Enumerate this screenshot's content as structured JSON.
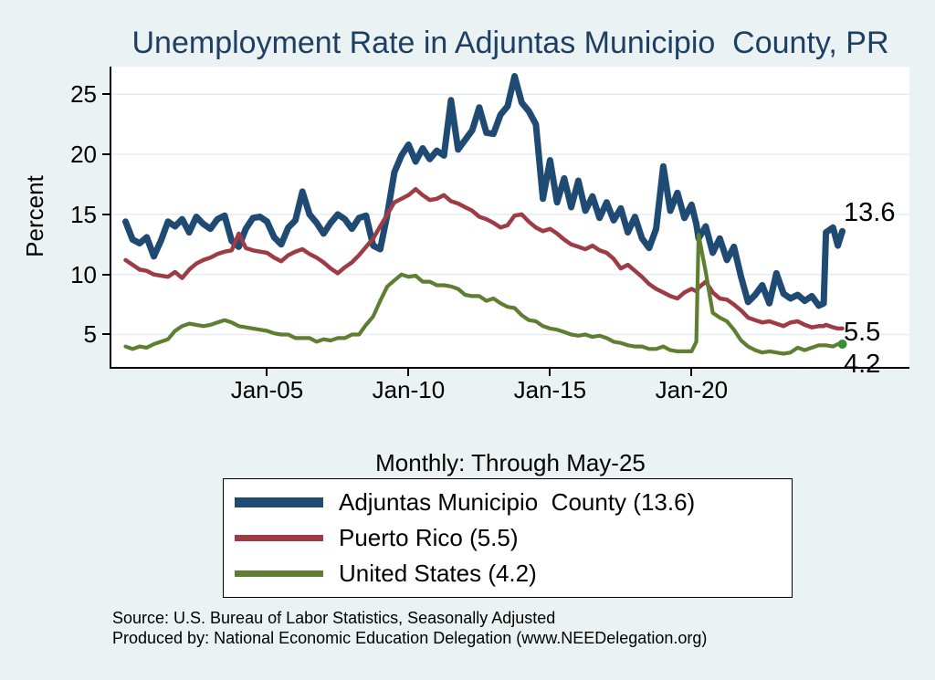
{
  "chart_data": {
    "type": "line",
    "title": "Unemployment Rate in Adjuntas Municipio  County, PR",
    "xaxis_note": "Monthly: Through May-25",
    "ylabel": "Percent",
    "grid": true,
    "legend_position": "below",
    "x_unit": "decimal_year",
    "xlim": [
      1999.5,
      2027.7
    ],
    "ylim": [
      2.3,
      27.3
    ],
    "yticks": [
      5,
      10,
      15,
      20,
      25
    ],
    "xticks": [
      {
        "value": 2005,
        "label": "Jan-05"
      },
      {
        "value": 2010,
        "label": "Jan-10"
      },
      {
        "value": 2015,
        "label": "Jan-15"
      },
      {
        "value": 2020,
        "label": "Jan-20"
      }
    ],
    "x": [
      2000.0,
      2000.25,
      2000.5,
      2000.75,
      2001.0,
      2001.25,
      2001.5,
      2001.75,
      2002.0,
      2002.25,
      2002.5,
      2002.75,
      2003.0,
      2003.25,
      2003.5,
      2003.75,
      2004.0,
      2004.25,
      2004.5,
      2004.75,
      2005.0,
      2005.25,
      2005.5,
      2005.75,
      2006.0,
      2006.25,
      2006.5,
      2006.75,
      2007.0,
      2007.25,
      2007.5,
      2007.75,
      2008.0,
      2008.25,
      2008.5,
      2008.75,
      2009.0,
      2009.25,
      2009.5,
      2009.75,
      2010.0,
      2010.25,
      2010.5,
      2010.75,
      2011.0,
      2011.25,
      2011.5,
      2011.75,
      2012.0,
      2012.25,
      2012.5,
      2012.75,
      2013.0,
      2013.25,
      2013.5,
      2013.75,
      2014.0,
      2014.25,
      2014.5,
      2014.75,
      2015.0,
      2015.25,
      2015.5,
      2015.75,
      2016.0,
      2016.25,
      2016.5,
      2016.75,
      2017.0,
      2017.25,
      2017.5,
      2017.75,
      2018.0,
      2018.25,
      2018.5,
      2018.75,
      2019.0,
      2019.25,
      2019.5,
      2019.75,
      2020.0,
      2020.17,
      2020.25,
      2020.5,
      2020.75,
      2021.0,
      2021.25,
      2021.5,
      2021.75,
      2022.0,
      2022.25,
      2022.5,
      2022.75,
      2023.0,
      2023.25,
      2023.5,
      2023.75,
      2024.0,
      2024.25,
      2024.5,
      2024.67,
      2024.75,
      2025.0,
      2025.17,
      2025.33
    ],
    "series": [
      {
        "name": "Adjuntas Municipio  County",
        "legend_label": "Adjuntas Municipio  County (13.6)",
        "color": "#1e4a73",
        "line_width": 7,
        "end_label": "13.6",
        "latest_value": 13.6,
        "values": [
          14.4,
          12.9,
          12.6,
          13.1,
          11.5,
          12.8,
          14.4,
          14.0,
          14.6,
          13.5,
          14.8,
          14.2,
          13.8,
          14.6,
          14.9,
          12.8,
          12.3,
          13.8,
          14.7,
          14.8,
          14.4,
          13.1,
          12.5,
          13.9,
          14.5,
          16.9,
          15.0,
          14.3,
          13.4,
          14.3,
          15.0,
          14.6,
          13.8,
          14.7,
          14.9,
          12.4,
          12.1,
          15.0,
          18.5,
          19.9,
          20.8,
          19.4,
          20.5,
          19.6,
          20.3,
          19.9,
          24.5,
          20.4,
          21.2,
          22.0,
          23.9,
          21.8,
          21.7,
          23.3,
          24.0,
          26.5,
          24.3,
          23.6,
          22.5,
          16.3,
          19.5,
          16.0,
          18.0,
          15.6,
          17.8,
          15.3,
          16.5,
          14.7,
          16.0,
          14.5,
          15.5,
          13.5,
          14.8,
          13.0,
          12.2,
          13.8,
          19.0,
          15.3,
          16.8,
          14.7,
          15.8,
          14.2,
          13.0,
          14.0,
          11.8,
          13.0,
          11.2,
          12.3,
          9.8,
          7.7,
          8.3,
          9.1,
          7.6,
          10.1,
          8.4,
          8.0,
          8.3,
          7.8,
          8.2,
          7.4,
          7.6,
          13.5,
          13.9,
          12.4,
          13.6
        ]
      },
      {
        "name": "Puerto Rico",
        "legend_label": "Puerto Rico (5.5)",
        "color": "#9e3c46",
        "line_width": 4.5,
        "end_label": "5.5",
        "latest_value": 5.5,
        "values": [
          11.2,
          10.8,
          10.4,
          10.3,
          10.0,
          9.9,
          9.8,
          10.2,
          9.7,
          10.4,
          10.9,
          11.2,
          11.4,
          11.7,
          11.9,
          12.0,
          13.4,
          12.2,
          12.0,
          11.9,
          11.8,
          11.4,
          11.1,
          11.6,
          11.9,
          12.1,
          11.7,
          11.4,
          11.0,
          10.5,
          10.1,
          10.6,
          11.0,
          11.6,
          12.3,
          13.0,
          14.0,
          15.0,
          16.0,
          16.3,
          16.6,
          17.1,
          16.6,
          16.2,
          16.3,
          16.6,
          16.1,
          15.9,
          15.6,
          15.3,
          14.8,
          14.6,
          14.3,
          13.9,
          14.1,
          14.9,
          15.0,
          14.4,
          13.9,
          13.6,
          13.8,
          13.4,
          12.9,
          12.5,
          12.3,
          12.1,
          12.4,
          12.0,
          11.8,
          11.3,
          10.5,
          10.8,
          10.3,
          9.8,
          9.2,
          8.8,
          8.5,
          8.2,
          8.0,
          8.5,
          8.8,
          8.6,
          8.9,
          9.4,
          8.5,
          8.0,
          7.9,
          7.5,
          7.0,
          6.4,
          6.2,
          6.0,
          6.1,
          5.9,
          5.7,
          6.0,
          6.1,
          5.8,
          5.6,
          5.7,
          5.7,
          5.8,
          5.6,
          5.5,
          5.5
        ]
      },
      {
        "name": "United States",
        "legend_label": "United States (4.2)",
        "color": "#5e7f31",
        "line_width": 4.2,
        "end_label": "4.2",
        "latest_value": 4.2,
        "end_marker_color": "#3a8c3c",
        "values": [
          4.0,
          3.8,
          4.0,
          3.9,
          4.2,
          4.4,
          4.6,
          5.3,
          5.7,
          5.9,
          5.8,
          5.7,
          5.8,
          6.0,
          6.2,
          6.0,
          5.7,
          5.6,
          5.5,
          5.4,
          5.3,
          5.1,
          5.0,
          5.0,
          4.7,
          4.7,
          4.7,
          4.4,
          4.6,
          4.5,
          4.7,
          4.7,
          5.0,
          5.0,
          5.8,
          6.5,
          7.8,
          9.0,
          9.5,
          10.0,
          9.8,
          9.9,
          9.4,
          9.4,
          9.1,
          9.1,
          9.0,
          8.8,
          8.3,
          8.2,
          8.2,
          7.8,
          8.0,
          7.6,
          7.3,
          7.2,
          6.6,
          6.2,
          6.1,
          5.7,
          5.5,
          5.4,
          5.2,
          5.0,
          4.9,
          5.0,
          4.8,
          4.9,
          4.7,
          4.4,
          4.3,
          4.1,
          4.0,
          4.0,
          3.8,
          3.8,
          4.0,
          3.7,
          3.6,
          3.6,
          3.6,
          4.4,
          13.3,
          10.2,
          6.8,
          6.4,
          6.1,
          5.4,
          4.5,
          4.0,
          3.7,
          3.5,
          3.6,
          3.5,
          3.4,
          3.5,
          3.9,
          3.7,
          3.9,
          4.1,
          4.1,
          4.1,
          4.0,
          4.2,
          4.2
        ]
      }
    ],
    "notes": [
      "Source: U.S. Bureau of Labor Statistics, Seasonally Adjusted",
      "Produced by: National Economic Education Delegation (www.NEEDelegation.org)"
    ]
  },
  "colors": {
    "background": "#eaf2f3",
    "plot_background": "#ffffff",
    "grid": "#e3edf3",
    "axis": "#000000",
    "title": "#1d3f63",
    "text": "#000000"
  }
}
